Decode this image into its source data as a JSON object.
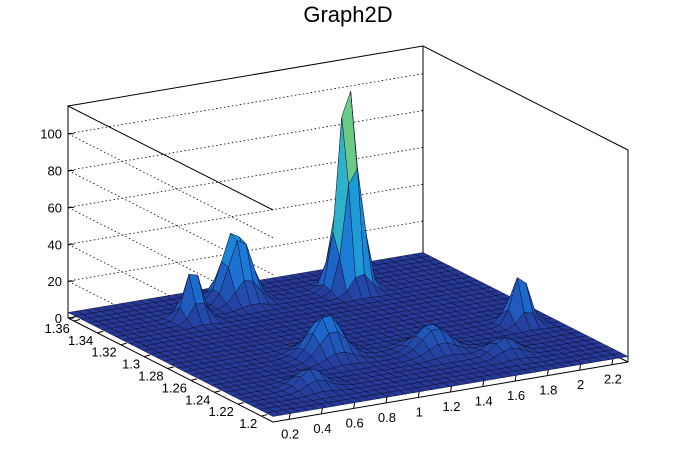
{
  "chart_data": {
    "type": "surface3d",
    "title": "Graph2D",
    "xlabel": "",
    "ylabel": "",
    "zlabel": "",
    "x_ticks": [
      "0.2",
      "0.4",
      "0.6",
      "0.8",
      "1",
      "1.2",
      "1.4",
      "1.6",
      "1.8",
      "2",
      "2.2"
    ],
    "y_ticks": [
      "1.2",
      "1.22",
      "1.24",
      "1.26",
      "1.28",
      "1.3",
      "1.32",
      "1.34",
      "1.36"
    ],
    "z_ticks": [
      "0",
      "20",
      "40",
      "60",
      "80",
      "100"
    ],
    "xlim": [
      0.1,
      2.3
    ],
    "ylim": [
      1.19,
      1.365
    ],
    "zlim": [
      0,
      115
    ],
    "grid": true,
    "colors": {
      "low": "#2a2f8f",
      "mid": "#1d8fd6",
      "high": "#e8d24a",
      "mesh": "#0a0a28"
    },
    "peaks": [
      {
        "x": 1.62,
        "y": 1.335,
        "z": 115,
        "width": 0.08
      },
      {
        "x": 1.0,
        "y": 1.345,
        "z": 40,
        "width": 0.1
      },
      {
        "x": 0.62,
        "y": 1.33,
        "z": 28,
        "width": 0.07
      },
      {
        "x": 0.9,
        "y": 1.255,
        "z": 23,
        "width": 0.12
      },
      {
        "x": 2.1,
        "y": 1.255,
        "z": 28,
        "width": 0.07
      },
      {
        "x": 1.45,
        "y": 1.24,
        "z": 14,
        "width": 0.12
      },
      {
        "x": 0.55,
        "y": 1.22,
        "z": 10,
        "width": 0.1
      },
      {
        "x": 1.75,
        "y": 1.22,
        "z": 9,
        "width": 0.1
      }
    ],
    "base_level": 3
  }
}
